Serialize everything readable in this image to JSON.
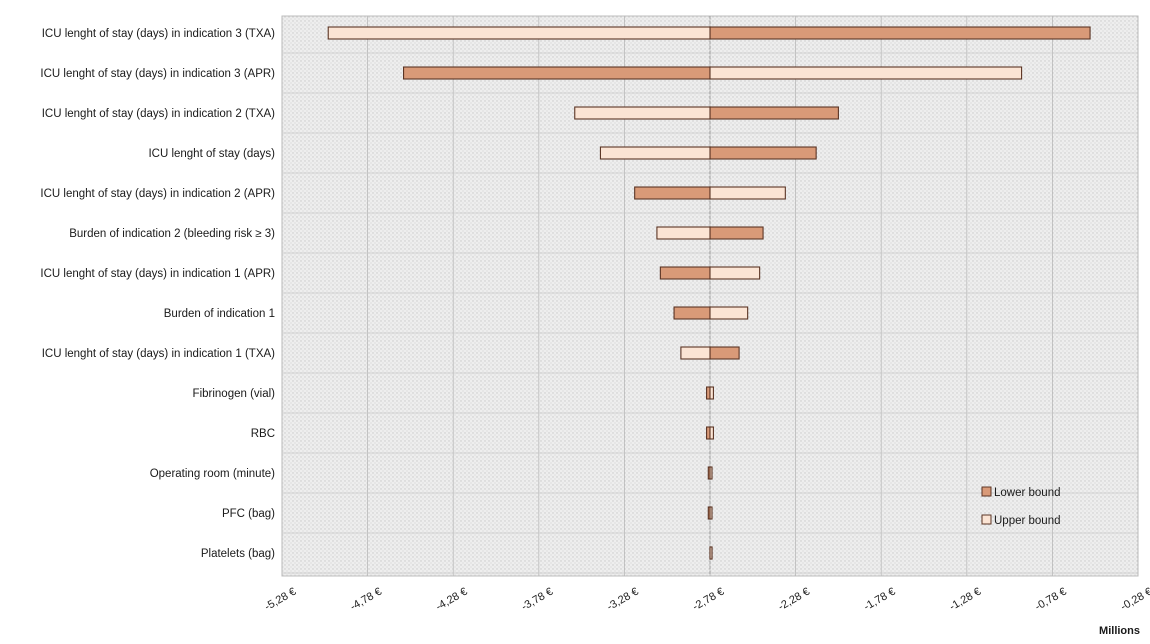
{
  "chart_data": {
    "type": "bar",
    "orientation": "horizontal",
    "subtype": "tornado",
    "title": "",
    "xlabel": "",
    "x_unit_label": "Millions",
    "xlim": [
      -5.28,
      -0.28
    ],
    "x_ticks": [
      -5.28,
      -4.78,
      -4.28,
      -3.78,
      -3.28,
      -2.78,
      -2.28,
      -1.78,
      -1.28,
      -0.78,
      -0.28
    ],
    "x_tick_labels": [
      "-5,28 €",
      "-4,78 €",
      "-4,28 €",
      "-3,78 €",
      "-3,28 €",
      "-2,78 €",
      "-2,28 €",
      "-1,78 €",
      "-1,28 €",
      "-0,78 €",
      "-0,28 €"
    ],
    "base_value": -2.78,
    "grid": true,
    "legend_position": "bottom-right",
    "categories": [
      "ICU lenght of stay (days) in indication 3 (TXA)",
      "ICU lenght of stay (days) in indication 3 (APR)",
      "ICU lenght of stay (days) in indication 2 (TXA)",
      "ICU lenght of stay (days)",
      "ICU lenght of stay (days) in indication 2 (APR)",
      "Burden of indication 2 (bleeding risk ≥ 3)",
      "ICU lenght of stay (days) in indication 1 (APR)",
      "Burden of indication 1",
      "ICU lenght of stay (days) in indication 1 (TXA)",
      "Fibrinogen (vial)",
      "RBC",
      "Operating room (minute)",
      "PFC (bag)",
      "Platelets (bag)"
    ],
    "series": [
      {
        "name": "Lower bound",
        "color": "#d99a78",
        "values": [
          -0.56,
          -4.57,
          -2.03,
          -2.16,
          -3.22,
          -2.47,
          -3.07,
          -2.99,
          -2.61,
          -2.8,
          -2.8,
          -2.79,
          -2.79,
          -2.78
        ]
      },
      {
        "name": "Upper bound",
        "color": "#fbe4d4",
        "values": [
          -5.01,
          -0.96,
          -3.57,
          -3.42,
          -2.34,
          -3.09,
          -2.49,
          -2.56,
          -2.95,
          -2.76,
          -2.76,
          -2.77,
          -2.77,
          -2.78
        ]
      }
    ]
  }
}
